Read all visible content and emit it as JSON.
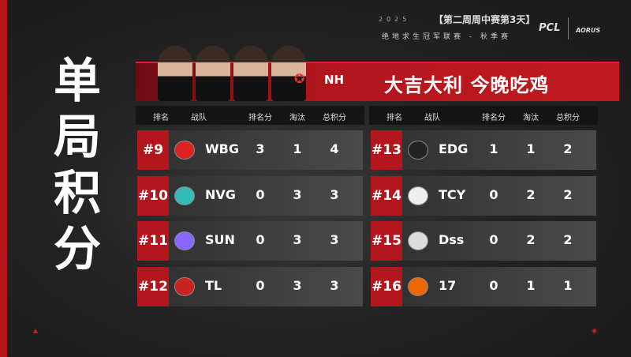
{
  "title": "单局积分",
  "header": {
    "year": "2025",
    "stage": "【第二周周中赛第3天】",
    "league": "绝地求生冠军联赛 - 秋季赛",
    "logo_pcl": "PCL",
    "logo_sponsor": "AORUS"
  },
  "banner": {
    "team": "NH",
    "slogan": "大吉大利 今晚吃鸡"
  },
  "columns": [
    "排名",
    "战队",
    "排名分",
    "淘汰",
    "总积分"
  ],
  "left_rows": [
    {
      "rank": "#9",
      "team": "WBG",
      "logo": "weibo-gaming-logo",
      "place_pts": "3",
      "elims": "1",
      "total": "4"
    },
    {
      "rank": "#10",
      "team": "NVG",
      "logo": "nvg-wings-logo",
      "place_pts": "0",
      "elims": "3",
      "total": "3"
    },
    {
      "rank": "#11",
      "team": "SUN",
      "logo": "sun-logo",
      "place_pts": "0",
      "elims": "3",
      "total": "3"
    },
    {
      "rank": "#12",
      "team": "TL",
      "logo": "tyloo-logo",
      "place_pts": "0",
      "elims": "3",
      "total": "3"
    }
  ],
  "right_rows": [
    {
      "rank": "#13",
      "team": "EDG",
      "logo": "edg-logo",
      "place_pts": "1",
      "elims": "1",
      "total": "2"
    },
    {
      "rank": "#14",
      "team": "TCY",
      "logo": "tcy-logo",
      "place_pts": "0",
      "elims": "2",
      "total": "2"
    },
    {
      "rank": "#15",
      "team": "Dss",
      "logo": "dss-logo",
      "place_pts": "0",
      "elims": "2",
      "total": "2"
    },
    {
      "rank": "#16",
      "team": "17",
      "logo": "17-logo",
      "place_pts": "0",
      "elims": "1",
      "total": "1"
    }
  ],
  "colors": {
    "accent": "#b3161d",
    "background": "#1e1e1f"
  }
}
